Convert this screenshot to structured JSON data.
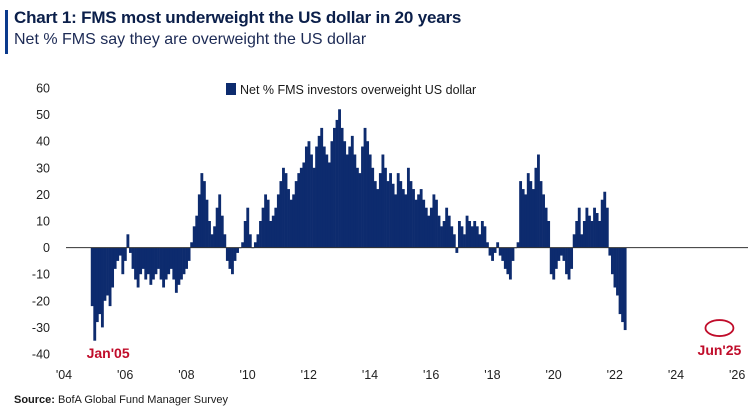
{
  "header": {
    "title": "Chart 1: FMS most underweight the US dollar in 20 years",
    "subtitle": "Net % FMS say they are overweight the US dollar"
  },
  "footer": {
    "source_label": "Source:",
    "source_text": "BofA Global Fund Manager Survey"
  },
  "colors": {
    "bar": "#0d2b6e",
    "accent": "#0a3a8c",
    "annotation": "#c00c2a",
    "zero_line": "#333333"
  },
  "chart_data": {
    "type": "bar",
    "legend": [
      "Net % FMS investors overweight US dollar"
    ],
    "legend_position": "top-center",
    "grid": false,
    "xlim": [
      2004,
      2027
    ],
    "ylim": [
      -40,
      60
    ],
    "y_ticks": [
      -40,
      -30,
      -20,
      -10,
      0,
      10,
      20,
      30,
      40,
      50,
      60
    ],
    "x_ticks": [
      {
        "value": 2004,
        "label": "'04"
      },
      {
        "value": 2006,
        "label": "'06"
      },
      {
        "value": 2008,
        "label": "'08"
      },
      {
        "value": 2010,
        "label": "'10"
      },
      {
        "value": 2012,
        "label": "'12"
      },
      {
        "value": 2014,
        "label": "'14"
      },
      {
        "value": 2016,
        "label": "'16"
      },
      {
        "value": 2018,
        "label": "'18"
      },
      {
        "value": 2020,
        "label": "'20"
      },
      {
        "value": 2022,
        "label": "'22"
      },
      {
        "value": 2024,
        "label": "'24"
      },
      {
        "value": 2026,
        "label": "'26"
      }
    ],
    "annotations": [
      {
        "label": "Jan'05",
        "x": 2005.0
      },
      {
        "label": "Jun'25",
        "x": 2025.42,
        "y": -31
      }
    ],
    "series": [
      {
        "name": "Net % FMS investors overweight US dollar",
        "start": "2004-12",
        "frequency": "monthly",
        "values": [
          -22,
          -35,
          -28,
          -25,
          -30,
          -20,
          -18,
          -22,
          -15,
          -8,
          -5,
          -3,
          -10,
          -5,
          5,
          -2,
          -8,
          -12,
          -15,
          -10,
          -8,
          -12,
          -10,
          -14,
          -12,
          -10,
          -8,
          -12,
          -15,
          -12,
          -10,
          -8,
          -12,
          -17,
          -14,
          -12,
          -10,
          -8,
          -5,
          2,
          8,
          12,
          20,
          28,
          25,
          18,
          10,
          5,
          8,
          15,
          20,
          12,
          5,
          -5,
          -8,
          -10,
          -5,
          -2,
          0,
          2,
          10,
          15,
          5,
          0,
          2,
          5,
          10,
          15,
          20,
          18,
          10,
          12,
          15,
          20,
          25,
          30,
          28,
          22,
          18,
          20,
          25,
          28,
          30,
          32,
          38,
          40,
          35,
          30,
          38,
          42,
          45,
          38,
          35,
          32,
          40,
          45,
          48,
          52,
          45,
          40,
          35,
          38,
          42,
          35,
          30,
          28,
          38,
          45,
          40,
          35,
          30,
          25,
          22,
          28,
          35,
          30,
          25,
          28,
          24,
          20,
          28,
          25,
          22,
          20,
          30,
          25,
          22,
          18,
          20,
          22,
          18,
          15,
          12,
          15,
          20,
          18,
          12,
          8,
          10,
          15,
          12,
          8,
          5,
          -2,
          10,
          8,
          5,
          12,
          10,
          8,
          10,
          8,
          5,
          10,
          8,
          2,
          -3,
          -5,
          -2,
          2,
          -3,
          -5,
          -8,
          -10,
          -12,
          -5,
          0,
          2,
          25,
          22,
          20,
          28,
          25,
          22,
          30,
          35,
          25,
          20,
          15,
          10,
          -10,
          -12,
          -8,
          -5,
          -3,
          -5,
          -10,
          -12,
          -8,
          5,
          10,
          15,
          5,
          10,
          15,
          12,
          10,
          15,
          13,
          10,
          18,
          21,
          15,
          -3,
          -10,
          -15,
          -18,
          -25,
          -28,
          -31
        ]
      }
    ]
  }
}
